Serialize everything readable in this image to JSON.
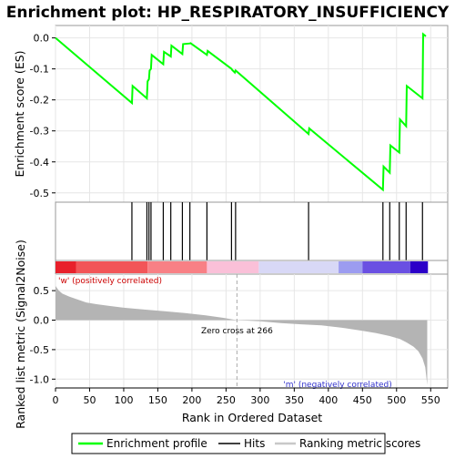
{
  "chart_data": {
    "type": "line",
    "title": "Enrichment plot: HP_RESPIRATORY_INSUFFICIENCY",
    "es_panel": {
      "ylabel": "Enrichment score (ES)",
      "ylim": [
        -0.53,
        0.04
      ],
      "yticks": [
        0.0,
        -0.1,
        -0.2,
        -0.3,
        -0.4,
        -0.5
      ],
      "ytick_labels": [
        "0.0",
        "-0.1",
        "-0.2",
        "-0.3",
        "-0.4",
        "-0.5"
      ],
      "grid": true,
      "series": [
        {
          "name": "Enrichment profile",
          "color": "#00ff00",
          "x": [
            0,
            112,
            113,
            134,
            135,
            137,
            138,
            140,
            141,
            158,
            159,
            169,
            170,
            186,
            187,
            197,
            198,
            222,
            223,
            258,
            259,
            263,
            264,
            371,
            372,
            480,
            481,
            490,
            491,
            504,
            505,
            514,
            515,
            538,
            539,
            543
          ],
          "y": [
            0.0,
            -0.21,
            -0.155,
            -0.195,
            -0.14,
            -0.133,
            -0.105,
            -0.1,
            -0.055,
            -0.085,
            -0.045,
            -0.06,
            -0.025,
            -0.052,
            -0.02,
            -0.018,
            -0.017,
            -0.055,
            -0.042,
            -0.1,
            -0.103,
            -0.112,
            -0.105,
            -0.31,
            -0.292,
            -0.49,
            -0.415,
            -0.435,
            -0.347,
            -0.37,
            -0.263,
            -0.285,
            -0.155,
            -0.195,
            0.012,
            0.005
          ]
        }
      ]
    },
    "hits": {
      "name": "Hits",
      "x": [
        112,
        134,
        137,
        140,
        158,
        169,
        186,
        197,
        222,
        258,
        264,
        371,
        480,
        490,
        504,
        514,
        538
      ]
    },
    "metric_panel": {
      "ylabel": "Ranked list metric (Signal2Noise)",
      "ylim": [
        -1.15,
        0.78
      ],
      "yticks": [
        0.5,
        0.0,
        -0.5,
        -1.0
      ],
      "ytick_labels": [
        "0.5",
        "0.0",
        "-0.5",
        "-1.0"
      ],
      "series_name": "Ranking metric scores",
      "profile": [
        [
          0,
          0.58
        ],
        [
          5,
          0.5
        ],
        [
          10,
          0.45
        ],
        [
          20,
          0.4
        ],
        [
          30,
          0.36
        ],
        [
          45,
          0.3
        ],
        [
          60,
          0.27
        ],
        [
          80,
          0.24
        ],
        [
          100,
          0.21
        ],
        [
          130,
          0.18
        ],
        [
          160,
          0.15
        ],
        [
          190,
          0.12
        ],
        [
          220,
          0.08
        ],
        [
          245,
          0.04
        ],
        [
          266,
          0.0
        ],
        [
          300,
          -0.02
        ],
        [
          330,
          -0.05
        ],
        [
          360,
          -0.07
        ],
        [
          390,
          -0.09
        ],
        [
          420,
          -0.13
        ],
        [
          450,
          -0.18
        ],
        [
          470,
          -0.22
        ],
        [
          490,
          -0.27
        ],
        [
          505,
          -0.32
        ],
        [
          515,
          -0.38
        ],
        [
          525,
          -0.45
        ],
        [
          532,
          -0.53
        ],
        [
          538,
          -0.65
        ],
        [
          542,
          -0.8
        ],
        [
          545,
          -1.1
        ]
      ],
      "zero_cross_label": "Zero cross at 266",
      "zero_cross": 266,
      "pos_label": "'w' (positively correlated)",
      "neg_label": "'m' (negatively correlated)"
    },
    "xaxis": {
      "label": "Rank in Ordered Dataset",
      "xlim": [
        0,
        575
      ],
      "ticks": [
        0,
        50,
        100,
        150,
        200,
        250,
        300,
        350,
        400,
        450,
        500,
        550
      ],
      "tick_labels": [
        "0",
        "50",
        "100",
        "150",
        "200",
        "250",
        "300",
        "350",
        "400",
        "450",
        "500",
        "550"
      ],
      "n": 546
    },
    "colorbar": [
      {
        "from": 0,
        "to": 30,
        "color": "#e8202b"
      },
      {
        "from": 30,
        "to": 135,
        "color": "#f25558"
      },
      {
        "from": 135,
        "to": 222,
        "color": "#f88085"
      },
      {
        "from": 222,
        "to": 298,
        "color": "#fac0d8"
      },
      {
        "from": 298,
        "to": 415,
        "color": "#d8d8f6"
      },
      {
        "from": 415,
        "to": 450,
        "color": "#9c9cf0"
      },
      {
        "from": 450,
        "to": 520,
        "color": "#6a50e2"
      },
      {
        "from": 520,
        "to": 546,
        "color": "#2c00c8"
      }
    ],
    "legend": {
      "placement": "bottom",
      "items": [
        {
          "label": "Enrichment profile",
          "color": "#00ff00"
        },
        {
          "label": "Hits",
          "color": "#000000"
        },
        {
          "label": "Ranking metric scores",
          "color": "#c8c8c8"
        }
      ]
    }
  }
}
